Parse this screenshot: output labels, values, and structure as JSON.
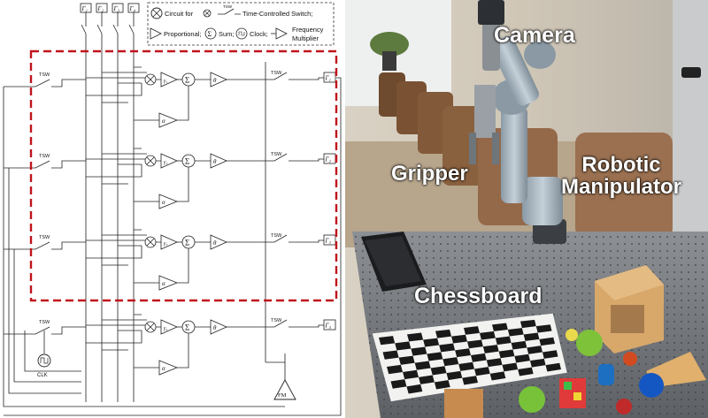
{
  "legend": {
    "circuit_for": "Circuit for",
    "time_switch": "Time-Controlled Switch;",
    "tsw_tag": "TSW",
    "proportional": "Proportional;",
    "sum": "Sum;",
    "clock": "Clock;",
    "freq_line1": "Frequency",
    "freq_line2": "Multiplier"
  },
  "inputs": [
    "Γ₁",
    "Γ₂",
    "Γ₃",
    "Γ₄"
  ],
  "channels": [
    {
      "out": "Γ₁",
      "gain": "γ₁",
      "phase": "θ",
      "scale": "α",
      "tsw": "TSW"
    },
    {
      "out": "Γ₂",
      "gain": "γ₂",
      "phase": "θ",
      "scale": "α",
      "tsw": "TSW"
    },
    {
      "out": "Γ₃",
      "gain": "γ₃",
      "phase": "θ",
      "scale": "α",
      "tsw": "TSW"
    },
    {
      "out": "Γ₄",
      "gain": "γ₄",
      "phase": "θ",
      "scale": "α",
      "tsw": "TSW"
    }
  ],
  "clock_label": "CLK",
  "fm_label": "FM",
  "photo_labels": {
    "camera": "Camera",
    "gripper": "Gripper",
    "manipulator_line1": "Robotic",
    "manipulator_line2": "Manipulator",
    "chessboard": "Chessboard"
  },
  "colors": {
    "highlight_box": "#c0141c",
    "wire": "#222222"
  }
}
